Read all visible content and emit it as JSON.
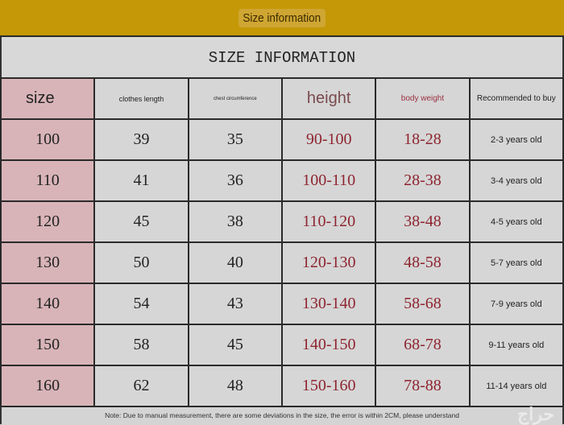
{
  "banner": "Size information",
  "title": "SIZE INFORMATION",
  "headers": [
    "size",
    "clothes length",
    "chest circumference",
    "height",
    "body weight",
    "Recommended to buy"
  ],
  "rows": [
    [
      "100",
      "39",
      "35",
      "90-100",
      "18-28",
      "2-3 years old"
    ],
    [
      "110",
      "41",
      "36",
      "100-110",
      "28-38",
      "3-4 years old"
    ],
    [
      "120",
      "45",
      "38",
      "110-120",
      "38-48",
      "4-5 years old"
    ],
    [
      "130",
      "50",
      "40",
      "120-130",
      "48-58",
      "5-7 years old"
    ],
    [
      "140",
      "54",
      "43",
      "130-140",
      "58-68",
      "7-9 years old"
    ],
    [
      "150",
      "58",
      "45",
      "140-150",
      "68-78",
      "9-11 years old"
    ],
    [
      "160",
      "62",
      "48",
      "150-160",
      "78-88",
      "11-14 years old"
    ]
  ],
  "note": "Note: Due to manual measurement, there are some deviations in the size, the error is within 2CM, please understand",
  "watermark": "حراج",
  "colors": {
    "banner": "#c49806",
    "size_column": "#d8b4b8",
    "accent_text": "#8e2430"
  }
}
